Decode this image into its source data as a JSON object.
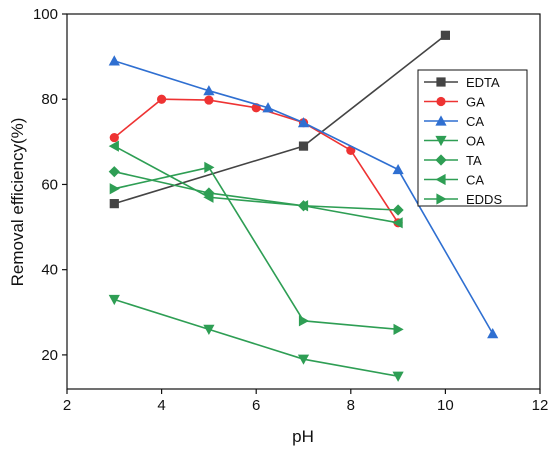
{
  "chart_data": {
    "type": "line",
    "title": "",
    "xlabel": "pH",
    "ylabel": "Removal efficiency(%)",
    "xlim": [
      2,
      12
    ],
    "ylim": [
      12,
      100
    ],
    "xticks": [
      2,
      4,
      6,
      8,
      10,
      12
    ],
    "yticks": [
      20,
      40,
      60,
      80,
      100
    ],
    "grid": false,
    "legend_position": "top-right",
    "series": [
      {
        "name": "EDTA",
        "color": "#444444",
        "marker": "square",
        "x": [
          3,
          7,
          10
        ],
        "y": [
          55.5,
          69,
          95
        ]
      },
      {
        "name": "GA",
        "color": "#ee3333",
        "marker": "circle",
        "x": [
          3,
          4,
          5,
          6,
          7,
          8,
          9
        ],
        "y": [
          71,
          80,
          79.8,
          78,
          74.5,
          68,
          51
        ]
      },
      {
        "name": "CA",
        "color": "#2f6fd1",
        "marker": "triangle-up",
        "x": [
          3,
          5,
          6.25,
          7,
          9,
          11
        ],
        "y": [
          89,
          82,
          78,
          74.5,
          63.5,
          25
        ]
      },
      {
        "name": "OA",
        "color": "#2e9e54",
        "marker": "triangle-down",
        "x": [
          3,
          5,
          7,
          9
        ],
        "y": [
          33,
          26,
          19,
          15
        ]
      },
      {
        "name": "TA",
        "color": "#2e9e54",
        "marker": "diamond",
        "x": [
          3,
          5,
          7,
          9
        ],
        "y": [
          63,
          58,
          55,
          54
        ]
      },
      {
        "name": "CA",
        "color": "#2e9e54",
        "marker": "triangle-left",
        "x": [
          3,
          5,
          7,
          9
        ],
        "y": [
          69,
          57,
          55,
          51
        ]
      },
      {
        "name": "EDDS",
        "color": "#2e9e54",
        "marker": "triangle-right",
        "x": [
          3,
          5,
          7,
          9
        ],
        "y": [
          59,
          64,
          28,
          26
        ]
      }
    ]
  }
}
